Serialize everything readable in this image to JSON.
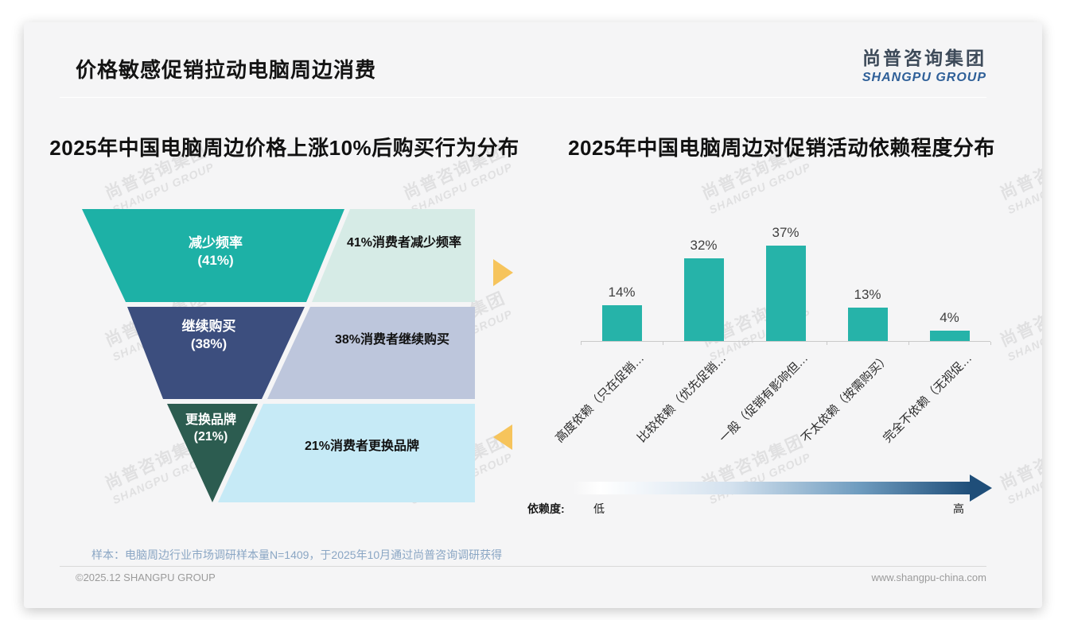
{
  "page": {
    "title": "价格敏感促销拉动电脑周边消费",
    "logo": {
      "cn": "尚普咨询集团",
      "en": "SHANGPU GROUP"
    },
    "watermark": {
      "cn": "尚普咨询集团",
      "en": "SHANGPU GROUP"
    },
    "footer": {
      "sample_note": "样本：电脑周边行业市场调研样本量N=1409，于2025年10月通过尚普咨询调研获得",
      "copyright": "©2025.12 SHANGPU GROUP",
      "website": "www.shangpu-china.com"
    }
  },
  "chart_data": [
    {
      "type": "funnel",
      "title": "2025年中国电脑周边价格上涨10%后购买行为分布",
      "stages": [
        {
          "label": "减少频率",
          "value_pct": 41,
          "value_label": "(41%)",
          "annotation": "41%消费者减少频率",
          "color": "#1db1a6",
          "band_color": "#d6ebe6"
        },
        {
          "label": "继续购买",
          "value_pct": 38,
          "value_label": "(38%)",
          "annotation": "38%消费者继续购买",
          "color": "#3c4e7e",
          "band_color": "#bdc6dc"
        },
        {
          "label": "更换品牌",
          "value_pct": 21,
          "value_label": "(21%)",
          "annotation": "21%消费者更换品牌",
          "color": "#2c5c50",
          "band_color": "#c6eaf6"
        }
      ]
    },
    {
      "type": "bar",
      "title": "2025年中国电脑周边对促销活动依赖程度分布",
      "categories": [
        "高度依赖（只在促销…",
        "比较依赖（优先促销…",
        "一般（促销有影响但…",
        "不太依赖（按需购买）",
        "完全不依赖（无视促…"
      ],
      "values": [
        14,
        32,
        37,
        13,
        4
      ],
      "value_labels": [
        "14%",
        "32%",
        "37%",
        "13%",
        "4%"
      ],
      "bar_color": "#26b3a9",
      "ylim": [
        0,
        40
      ],
      "grid": false,
      "legend": {
        "name": "依赖度:",
        "low": "低",
        "high": "高"
      }
    }
  ]
}
